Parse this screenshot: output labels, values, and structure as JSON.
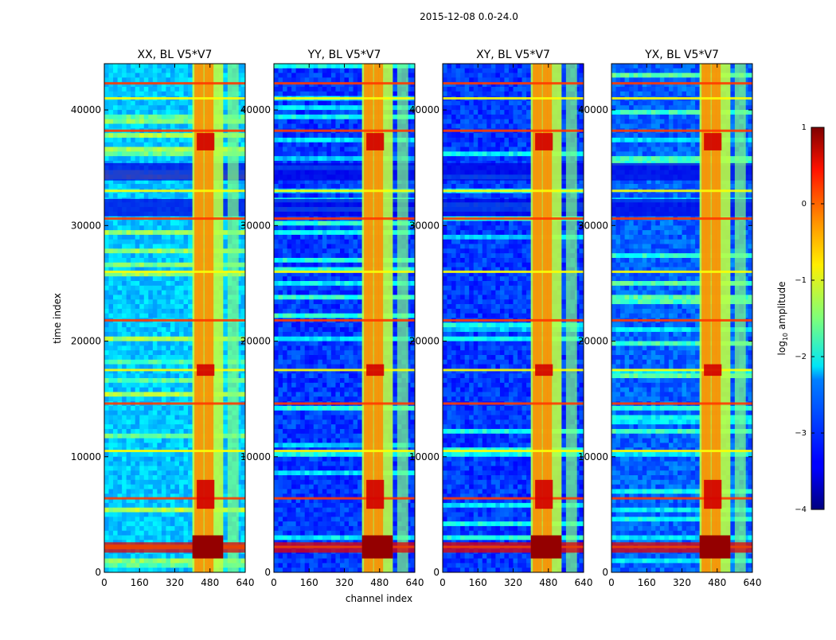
{
  "figure": {
    "suptitle": "2015-12-08 0.0-24.0"
  },
  "chart_data": {
    "type": "heatmap",
    "title": "2015-12-08 0.0-24.0",
    "xlabel": "channel index",
    "ylabel": "time index",
    "xlim": [
      0,
      640
    ],
    "ylim": [
      0,
      44000
    ],
    "x_ticks": [
      0,
      160,
      320,
      480,
      640
    ],
    "y_ticks": [
      0,
      10000,
      20000,
      30000,
      40000
    ],
    "panels": [
      {
        "title": "XX, BL V5*V7",
        "pol": "XX",
        "bg_level": -2.4
      },
      {
        "title": "YY, BL V5*V7",
        "pol": "YY",
        "bg_level": -3.1
      },
      {
        "title": "XY, BL V5*V7",
        "pol": "XY",
        "bg_level": -3.1
      },
      {
        "title": "YX, BL V5*V7",
        "pol": "YX",
        "bg_level": -2.9
      }
    ],
    "bright_band_channels": [
      400,
      540
    ],
    "strong_channel_columns": [
      420,
      440,
      465,
      485
    ],
    "rfi_rows_time_index": [
      2200,
      6400,
      10500,
      14600,
      17500,
      21800,
      26000,
      30600,
      33000,
      38200,
      41000,
      42300
    ],
    "quiet_blocks_time_index": [
      [
        30800,
        32300
      ],
      [
        33900,
        35400
      ]
    ],
    "colorbar": {
      "label_prefix": "log",
      "label_sub": "10",
      "label_suffix": " amplitude",
      "vmin": -4,
      "vmax": 1,
      "ticks": [
        1,
        0,
        -1,
        -2,
        -3,
        -4
      ],
      "tick_labels": [
        "1",
        "0",
        "−1",
        "−2",
        "−3",
        "−4"
      ]
    }
  }
}
